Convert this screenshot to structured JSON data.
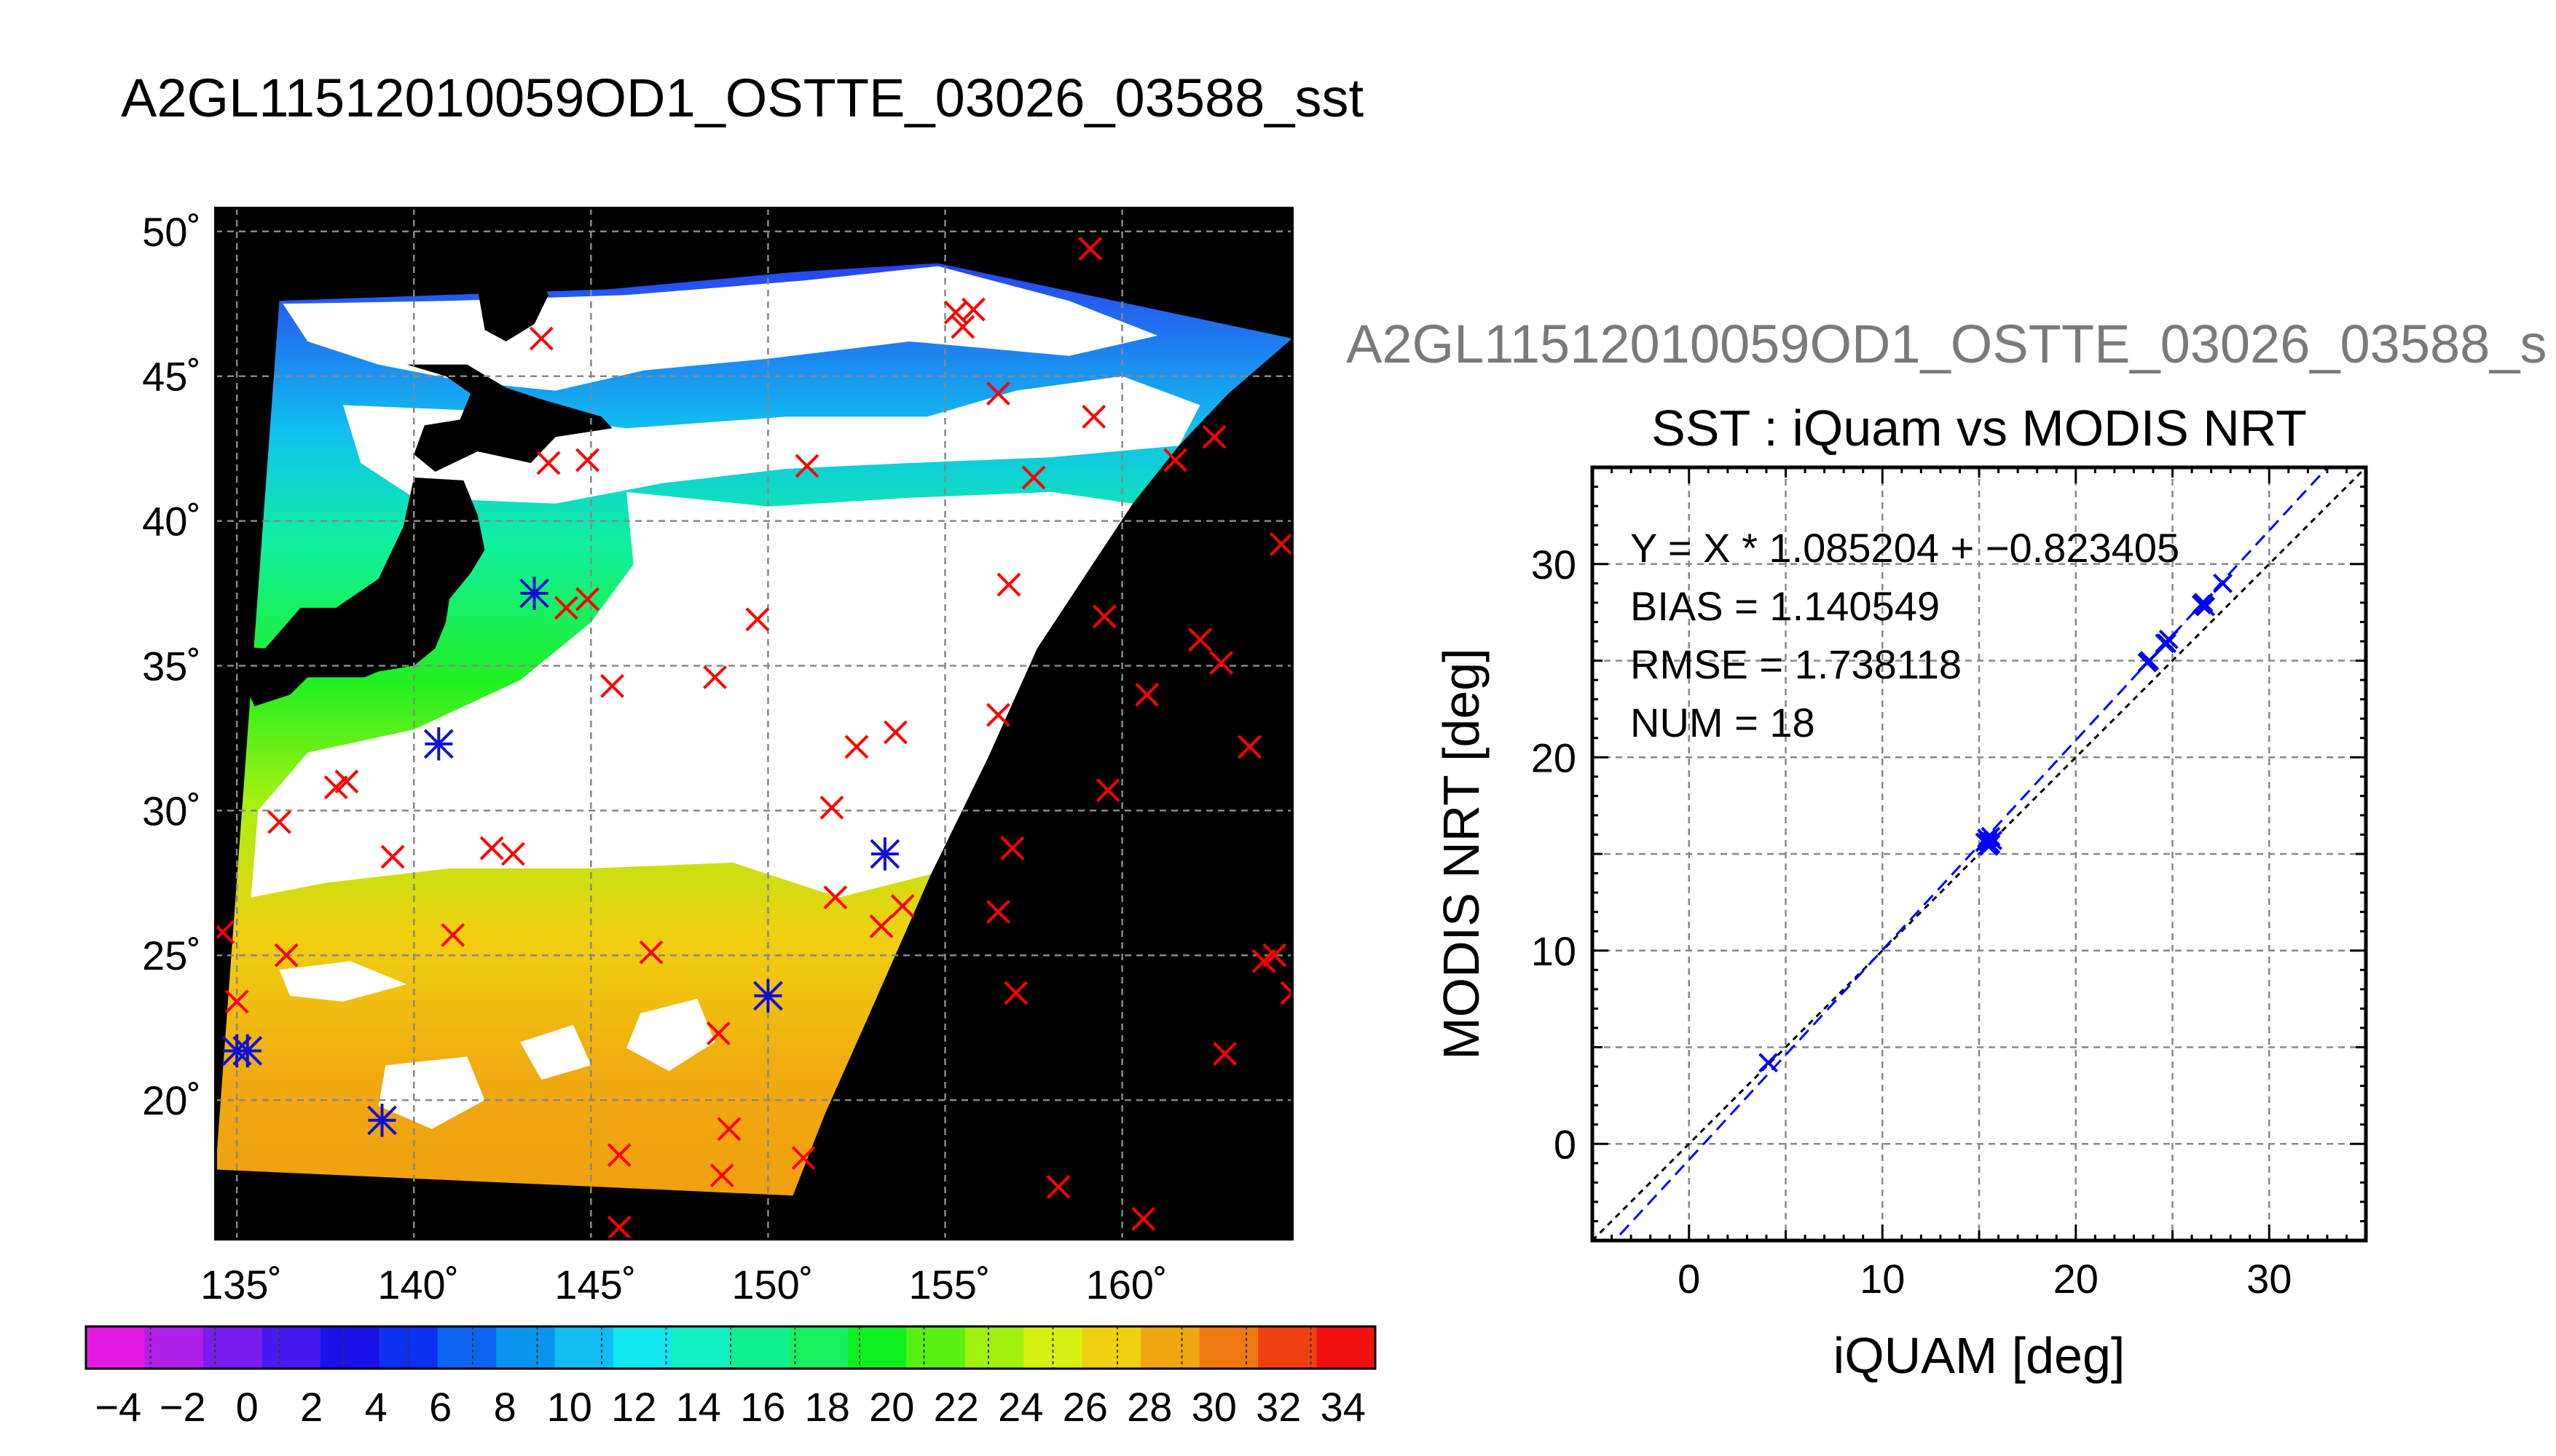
{
  "file_title": "A2GL11512010059OD1_OSTTE_03026_03588_sst",
  "file_title_repeat": "A2GL11512010059OD1_OSTTE_03026_03588_s",
  "colors": {
    "match_marker": "#1010d0",
    "unmatched_marker": "#ff0000",
    "land": "#000000",
    "fit_line": "#0000ff",
    "identity_line": "#000000"
  },
  "chart_data": [
    {
      "type": "scatter",
      "name_role": "sst-map",
      "projection": "equirectangular",
      "xlim": [
        134.4,
        164.8
      ],
      "ylim": [
        15.2,
        50.8
      ],
      "x_ticks": [
        135,
        140,
        145,
        150,
        155,
        160
      ],
      "y_ticks": [
        20,
        25,
        30,
        35,
        40,
        45,
        50
      ],
      "x_tick_labels": [
        "135˚",
        "140˚",
        "145˚",
        "150˚",
        "155˚",
        "160˚"
      ],
      "y_tick_labels": [
        "20˚",
        "25˚",
        "30˚",
        "35˚",
        "40˚",
        "45˚",
        "50˚"
      ],
      "grid": true,
      "swath_corners": [
        [
          136.2,
          47.6
        ],
        [
          140.8,
          47.8
        ],
        [
          145.5,
          48.0
        ],
        [
          150.8,
          48.6
        ],
        [
          154.8,
          48.9
        ],
        [
          164.8,
          46.3
        ],
        [
          163.0,
          44.4
        ],
        [
          161.6,
          42.6
        ],
        [
          160.3,
          40.6
        ],
        [
          158.9,
          38.2
        ],
        [
          157.6,
          35.6
        ],
        [
          156.2,
          31.8
        ],
        [
          154.6,
          27.8
        ],
        [
          152.8,
          22.8
        ],
        [
          151.6,
          19.5
        ],
        [
          150.7,
          16.7
        ],
        [
          134.4,
          17.6
        ]
      ],
      "unmatched_points": [
        [
          134.6,
          25.8
        ],
        [
          135.0,
          23.4
        ],
        [
          136.2,
          29.6
        ],
        [
          136.4,
          25.0
        ],
        [
          137.8,
          30.8
        ],
        [
          138.1,
          31.0
        ],
        [
          139.4,
          28.4
        ],
        [
          141.1,
          25.7
        ],
        [
          142.2,
          28.7
        ],
        [
          142.8,
          28.5
        ],
        [
          143.6,
          46.3
        ],
        [
          143.8,
          42.0
        ],
        [
          144.3,
          37.0
        ],
        [
          144.9,
          42.1
        ],
        [
          144.9,
          37.3
        ],
        [
          145.6,
          34.3
        ],
        [
          145.8,
          18.1
        ],
        [
          145.8,
          15.6
        ],
        [
          146.7,
          25.1
        ],
        [
          148.5,
          34.6
        ],
        [
          148.6,
          22.3
        ],
        [
          148.7,
          17.4
        ],
        [
          148.9,
          19.0
        ],
        [
          149.7,
          36.6
        ],
        [
          151.0,
          18.0
        ],
        [
          151.1,
          41.9
        ],
        [
          151.8,
          30.1
        ],
        [
          151.9,
          27.0
        ],
        [
          152.5,
          32.2
        ],
        [
          153.2,
          26.0
        ],
        [
          153.6,
          32.7
        ],
        [
          153.8,
          26.7
        ],
        [
          155.3,
          47.2
        ],
        [
          155.5,
          46.7
        ],
        [
          155.8,
          47.3
        ],
        [
          156.5,
          44.4
        ],
        [
          156.5,
          33.3
        ],
        [
          156.5,
          26.5
        ],
        [
          156.8,
          37.8
        ],
        [
          156.9,
          28.7
        ],
        [
          157.0,
          23.7
        ],
        [
          157.5,
          41.5
        ],
        [
          158.2,
          17.0
        ],
        [
          159.1,
          49.4
        ],
        [
          159.2,
          43.6
        ],
        [
          159.5,
          36.7
        ],
        [
          159.6,
          30.7
        ],
        [
          160.6,
          15.9
        ],
        [
          160.7,
          34.0
        ],
        [
          161.5,
          42.1
        ],
        [
          162.2,
          35.9
        ],
        [
          162.6,
          42.9
        ],
        [
          162.8,
          35.1
        ],
        [
          162.9,
          21.6
        ],
        [
          163.6,
          32.2
        ],
        [
          164.0,
          24.8
        ],
        [
          164.3,
          25.0
        ],
        [
          164.5,
          39.2
        ],
        [
          164.8,
          23.7
        ]
      ],
      "matched_points": [
        [
          143.4,
          37.5
        ],
        [
          140.7,
          32.3
        ],
        [
          135.0,
          21.7
        ],
        [
          135.3,
          21.7
        ],
        [
          139.1,
          19.3
        ],
        [
          150.0,
          23.6
        ],
        [
          153.3,
          28.5
        ]
      ],
      "colorbar": {
        "range": [
          -5,
          35
        ],
        "step": 2,
        "tick_labels": [
          "−4",
          "−2",
          "0",
          "2",
          "4",
          "6",
          "8",
          "10",
          "12",
          "14",
          "16",
          "18",
          "20",
          "22",
          "24",
          "26",
          "28",
          "30",
          "32",
          "34"
        ],
        "tick_values": [
          -4,
          -2,
          0,
          2,
          4,
          6,
          8,
          10,
          12,
          14,
          16,
          18,
          20,
          22,
          24,
          26,
          28,
          30,
          32,
          34
        ],
        "colors": [
          "#e41ae4",
          "#b01ee8",
          "#7a1ef0",
          "#4a18f0",
          "#1a10e8",
          "#0a30f0",
          "#0a64f0",
          "#0a94f0",
          "#10bcf2",
          "#10e6f0",
          "#10f0c0",
          "#10f090",
          "#18f060",
          "#10f020",
          "#58f010",
          "#a0f010",
          "#d8f010",
          "#f0d010",
          "#f0a810",
          "#f07810",
          "#f04010",
          "#f01010"
        ]
      }
    },
    {
      "type": "scatter",
      "name_role": "sst-comparison",
      "title": "SST : iQuam vs MODIS NRT",
      "xlabel": "iQUAM [deg]",
      "ylabel": "MODIS NRT [deg]",
      "xlim": [
        -5,
        35
      ],
      "ylim": [
        -5,
        35
      ],
      "ticks": [
        0,
        10,
        20,
        30
      ],
      "tick_labels": [
        "0",
        "10",
        "20",
        "30"
      ],
      "minor_grid_step": 5,
      "grid": true,
      "stats": [
        "Y = X * 1.085204 + −0.823405",
        "BIAS = 1.140549",
        "RMSE = 1.738118",
        "NUM = 18"
      ],
      "fit": {
        "slope": 1.085204,
        "intercept": -0.823405
      },
      "points": [
        [
          4.1,
          4.2
        ],
        [
          15.4,
          15.8
        ],
        [
          15.5,
          15.6
        ],
        [
          15.6,
          15.5
        ],
        [
          15.5,
          15.4
        ],
        [
          15.7,
          15.7
        ],
        [
          23.8,
          25.0
        ],
        [
          24.6,
          25.9
        ],
        [
          24.7,
          25.9
        ],
        [
          26.6,
          28.0
        ],
        [
          26.7,
          27.8
        ],
        [
          26.6,
          27.9
        ],
        [
          27.6,
          29.0
        ],
        [
          15.3,
          15.6
        ],
        [
          23.7,
          24.9
        ],
        [
          26.5,
          27.9
        ],
        [
          15.6,
          15.9
        ],
        [
          24.8,
          26.1
        ]
      ]
    }
  ]
}
